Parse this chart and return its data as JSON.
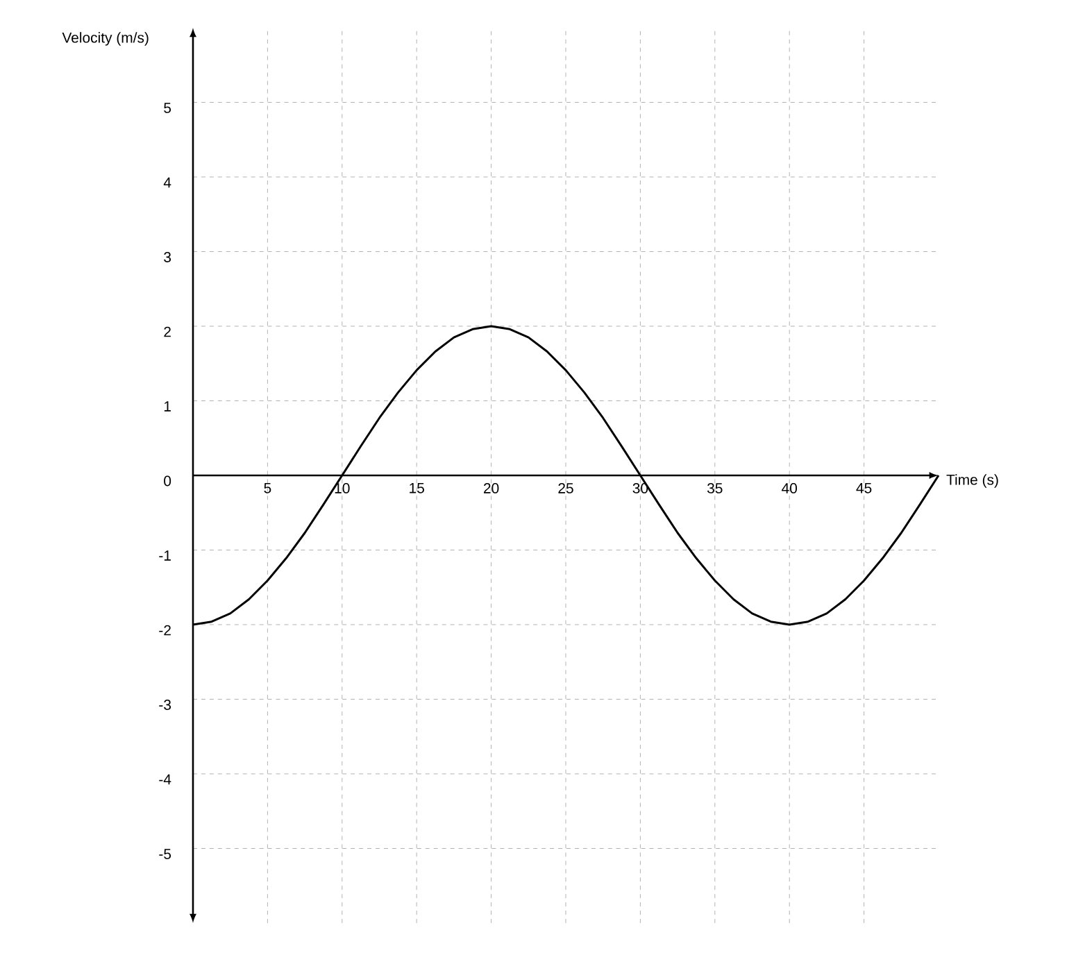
{
  "chart_data": {
    "type": "line",
    "xlabel": "Time (s)",
    "ylabel": "Velocity (m/s)",
    "x": [
      0,
      1.25,
      2.5,
      3.75,
      5,
      6.25,
      7.5,
      8.75,
      10,
      11.25,
      12.5,
      13.75,
      15,
      16.25,
      17.5,
      18.75,
      20,
      21.25,
      22.5,
      23.75,
      25,
      26.25,
      27.5,
      28.75,
      30,
      31.25,
      32.5,
      33.75,
      35,
      36.25,
      37.5,
      38.75,
      40,
      41.25,
      42.5,
      43.75,
      45,
      46.25,
      47.5,
      48.75,
      50
    ],
    "series": [
      {
        "color": "#000000",
        "values": [
          -2,
          -1.96,
          -1.85,
          -1.66,
          -1.41,
          -1.11,
          -0.77,
          -0.39,
          0,
          0.39,
          0.77,
          1.11,
          1.41,
          1.66,
          1.85,
          1.96,
          2,
          1.96,
          1.85,
          1.66,
          1.41,
          1.11,
          0.77,
          0.39,
          0,
          -0.39,
          -0.77,
          -1.11,
          -1.41,
          -1.66,
          -1.85,
          -1.96,
          -2,
          -1.96,
          -1.85,
          -1.66,
          -1.41,
          -1.11,
          -0.77,
          -0.39,
          0
        ]
      }
    ],
    "xlim": [
      0,
      50
    ],
    "ylim": [
      -6,
      6
    ],
    "xticks": [
      5,
      10,
      15,
      20,
      25,
      30,
      35,
      40,
      45
    ],
    "yticks": [
      -5,
      -4,
      -3,
      -2,
      -1,
      0,
      1,
      2,
      3,
      4,
      5
    ],
    "grid": true,
    "marker": "none",
    "line_style": "solid"
  }
}
